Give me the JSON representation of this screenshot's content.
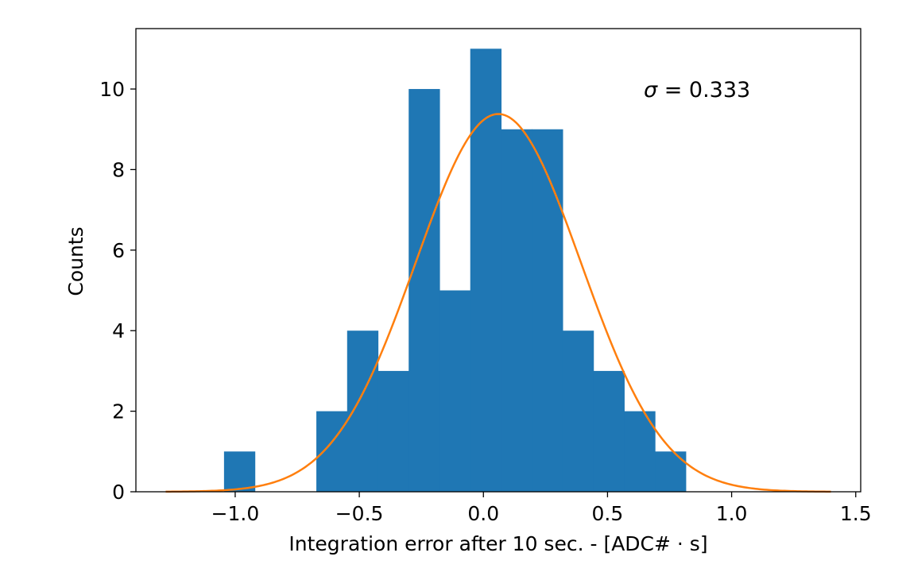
{
  "chart_data": {
    "type": "bar",
    "subtype": "histogram",
    "xlabel": "Integration error after 10 sec. - [ADC# · s]",
    "ylabel": "Counts",
    "xlim": [
      -1.4,
      1.52
    ],
    "ylim": [
      0,
      11.5
    ],
    "x_ticks": [
      -1.0,
      -0.5,
      0.0,
      0.5,
      1.0,
      1.5
    ],
    "x_tick_labels": [
      "−1.0",
      "−0.5",
      "0.0",
      "0.5",
      "1.0",
      "1.5"
    ],
    "y_ticks": [
      0,
      2,
      4,
      6,
      8,
      10
    ],
    "y_tick_labels": [
      "0",
      "2",
      "4",
      "6",
      "8",
      "10"
    ],
    "grid": false,
    "bin_edges": [
      -1.045,
      -0.921,
      -0.797,
      -0.673,
      -0.549,
      -0.425,
      -0.301,
      -0.177,
      -0.053,
      0.071,
      0.195,
      0.319,
      0.443,
      0.567,
      0.691,
      0.815
    ],
    "counts": [
      1,
      0,
      0,
      2,
      4,
      3,
      10,
      5,
      11,
      9,
      9,
      4,
      3,
      2,
      1
    ],
    "bar_color": "#1f77b4",
    "fit": {
      "type": "gaussian",
      "mean": 0.06,
      "sigma": 0.333,
      "amplitude": 9.38,
      "x_range": [
        -1.28,
        1.4
      ],
      "color": "#ff7f0e"
    },
    "annotation": {
      "sigma_symbol": "σ",
      "text": " = 0.333"
    }
  }
}
